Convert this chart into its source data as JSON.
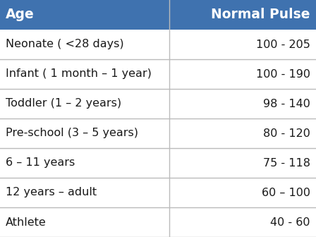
{
  "header": [
    "Age",
    "Normal Pulse"
  ],
  "rows": [
    [
      "Neonate ( <28 days)",
      "100 - 205"
    ],
    [
      "Infant ( 1 month – 1 year)",
      "100 - 190"
    ],
    [
      "Toddler (1 – 2 years)",
      "98 - 140"
    ],
    [
      "Pre-school (3 – 5 years)",
      "80 - 120"
    ],
    [
      "6 – 11 years",
      "75 - 118"
    ],
    [
      "12 years – adult",
      "60 – 100"
    ],
    [
      "Athlete",
      "40 - 60"
    ]
  ],
  "header_bg": "#3F72AF",
  "header_text_color": "#FFFFFF",
  "row_bg": "#FFFFFF",
  "row_text_color": "#1A1A1A",
  "border_color": "#BBBBBB",
  "col_split": 0.536,
  "fig_bg": "#FFFFFF",
  "header_fontsize": 13.5,
  "row_fontsize": 11.5,
  "fig_width": 4.48,
  "fig_height": 3.36,
  "dpi": 100
}
